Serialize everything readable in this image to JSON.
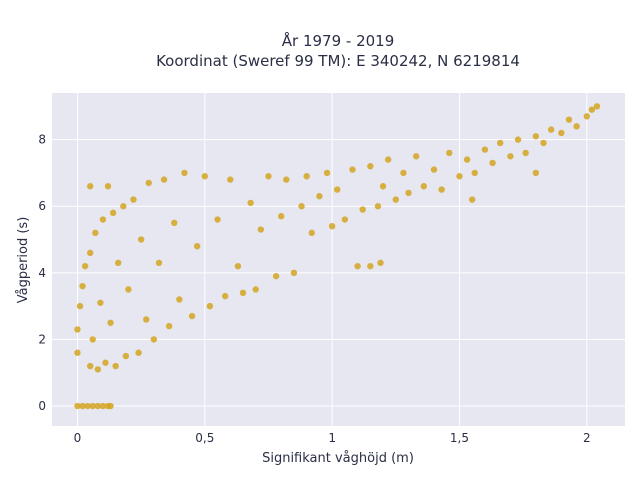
{
  "chart_data": {
    "type": "scatter",
    "title": "År 1979 - 2019",
    "subtitle": "Koordinat (Sweref 99 TM): E 340242, N 6219814",
    "xlabel": "Signifikant våghöjd (m)",
    "ylabel": "Vågperiod (s)",
    "xlim": [
      -0.1,
      2.15
    ],
    "ylim": [
      -0.6,
      9.4
    ],
    "x_ticks": [
      0,
      0.5,
      1,
      1.5,
      2
    ],
    "x_tick_labels": [
      "0",
      "0,5",
      "1",
      "1,5",
      "2"
    ],
    "y_ticks": [
      0,
      2,
      4,
      6,
      8
    ],
    "y_tick_labels": [
      "0",
      "2",
      "4",
      "6",
      "8"
    ],
    "grid": true,
    "legend": "none",
    "colors": {
      "marker": "#d4a421",
      "plot_bg": "#e6e7f0",
      "grid": "#ffffff",
      "text": "#2a2f45"
    },
    "series": [
      {
        "color": "#d4a421",
        "points": [
          [
            0.0,
            0.0
          ],
          [
            0.02,
            0.0
          ],
          [
            0.04,
            0.0
          ],
          [
            0.06,
            0.0
          ],
          [
            0.08,
            0.0
          ],
          [
            0.1,
            0.0
          ],
          [
            0.12,
            0.0
          ],
          [
            0.13,
            0.0
          ],
          [
            0.0,
            1.6
          ],
          [
            0.0,
            2.3
          ],
          [
            0.01,
            3.0
          ],
          [
            0.02,
            3.6
          ],
          [
            0.03,
            4.2
          ],
          [
            0.05,
            1.2
          ],
          [
            0.05,
            4.6
          ],
          [
            0.06,
            2.0
          ],
          [
            0.07,
            5.2
          ],
          [
            0.08,
            1.1
          ],
          [
            0.09,
            3.1
          ],
          [
            0.1,
            5.6
          ],
          [
            0.11,
            1.3
          ],
          [
            0.12,
            6.6
          ],
          [
            0.13,
            2.5
          ],
          [
            0.14,
            5.8
          ],
          [
            0.15,
            1.2
          ],
          [
            0.16,
            4.3
          ],
          [
            0.18,
            6.0
          ],
          [
            0.19,
            1.5
          ],
          [
            0.2,
            3.5
          ],
          [
            0.22,
            6.2
          ],
          [
            0.24,
            1.6
          ],
          [
            0.25,
            5.0
          ],
          [
            0.27,
            2.6
          ],
          [
            0.28,
            6.7
          ],
          [
            0.3,
            2.0
          ],
          [
            0.32,
            4.3
          ],
          [
            0.34,
            6.8
          ],
          [
            0.36,
            2.4
          ],
          [
            0.38,
            5.5
          ],
          [
            0.4,
            3.2
          ],
          [
            0.42,
            7.0
          ],
          [
            0.45,
            2.7
          ],
          [
            0.47,
            4.8
          ],
          [
            0.5,
            6.9
          ],
          [
            0.52,
            3.0
          ],
          [
            0.55,
            5.6
          ],
          [
            0.58,
            3.3
          ],
          [
            0.6,
            6.8
          ],
          [
            0.63,
            4.2
          ],
          [
            0.65,
            3.4
          ],
          [
            0.68,
            6.1
          ],
          [
            0.7,
            3.5
          ],
          [
            0.72,
            5.3
          ],
          [
            0.75,
            6.9
          ],
          [
            0.78,
            3.9
          ],
          [
            0.8,
            5.7
          ],
          [
            0.82,
            6.8
          ],
          [
            0.85,
            4.0
          ],
          [
            0.88,
            6.0
          ],
          [
            0.9,
            6.9
          ],
          [
            0.92,
            5.2
          ],
          [
            0.95,
            6.3
          ],
          [
            0.98,
            7.0
          ],
          [
            1.0,
            5.4
          ],
          [
            1.02,
            6.5
          ],
          [
            1.05,
            5.6
          ],
          [
            1.08,
            7.1
          ],
          [
            1.1,
            4.2
          ],
          [
            1.12,
            5.9
          ],
          [
            1.15,
            7.2
          ],
          [
            1.18,
            6.0
          ],
          [
            1.2,
            6.6
          ],
          [
            1.22,
            7.4
          ],
          [
            1.25,
            6.2
          ],
          [
            1.28,
            7.0
          ],
          [
            1.3,
            6.4
          ],
          [
            1.33,
            7.5
          ],
          [
            1.36,
            6.6
          ],
          [
            1.4,
            7.1
          ],
          [
            1.43,
            6.5
          ],
          [
            1.46,
            7.6
          ],
          [
            1.5,
            6.9
          ],
          [
            1.53,
            7.4
          ],
          [
            1.56,
            7.0
          ],
          [
            1.6,
            7.7
          ],
          [
            1.63,
            7.3
          ],
          [
            1.66,
            7.9
          ],
          [
            1.7,
            7.5
          ],
          [
            1.73,
            8.0
          ],
          [
            1.76,
            7.6
          ],
          [
            1.8,
            8.1
          ],
          [
            1.83,
            7.9
          ],
          [
            1.86,
            8.3
          ],
          [
            1.9,
            8.2
          ],
          [
            1.93,
            8.6
          ],
          [
            1.96,
            8.4
          ],
          [
            2.0,
            8.7
          ],
          [
            2.02,
            8.9
          ],
          [
            2.04,
            9.0
          ],
          [
            1.15,
            4.2
          ],
          [
            1.19,
            4.3
          ],
          [
            1.55,
            6.2
          ],
          [
            1.8,
            7.0
          ],
          [
            0.05,
            6.6
          ]
        ]
      }
    ]
  }
}
